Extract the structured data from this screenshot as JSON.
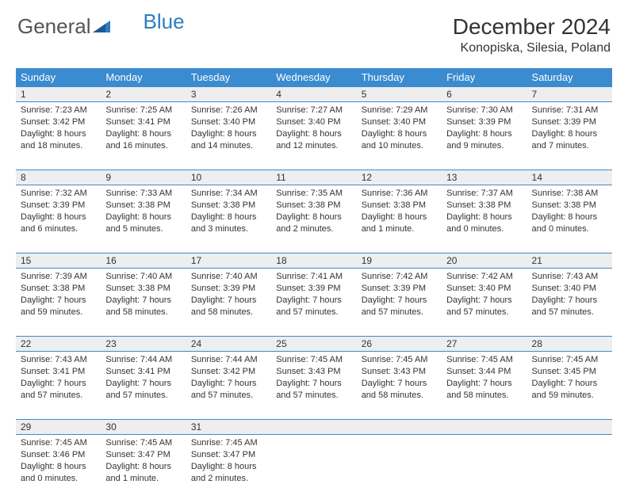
{
  "logo": {
    "text1": "General",
    "text2": "Blue"
  },
  "title": "December 2024",
  "location": "Konopiska, Silesia, Poland",
  "colors": {
    "header_bg": "#3b8bd0",
    "header_text": "#ffffff",
    "daynum_bg": "#eeeeee",
    "border": "#3b8bd0",
    "text": "#333333",
    "logo_gray": "#555555",
    "logo_blue": "#2e7cc2"
  },
  "typography": {
    "title_fontsize": 28,
    "location_fontsize": 16,
    "th_fontsize": 13,
    "daynum_fontsize": 12,
    "cell_fontsize": 11
  },
  "weekdays": [
    "Sunday",
    "Monday",
    "Tuesday",
    "Wednesday",
    "Thursday",
    "Friday",
    "Saturday"
  ],
  "weeks": [
    [
      {
        "n": "1",
        "sunrise": "Sunrise: 7:23 AM",
        "sunset": "Sunset: 3:42 PM",
        "daylight": "Daylight: 8 hours and 18 minutes."
      },
      {
        "n": "2",
        "sunrise": "Sunrise: 7:25 AM",
        "sunset": "Sunset: 3:41 PM",
        "daylight": "Daylight: 8 hours and 16 minutes."
      },
      {
        "n": "3",
        "sunrise": "Sunrise: 7:26 AM",
        "sunset": "Sunset: 3:40 PM",
        "daylight": "Daylight: 8 hours and 14 minutes."
      },
      {
        "n": "4",
        "sunrise": "Sunrise: 7:27 AM",
        "sunset": "Sunset: 3:40 PM",
        "daylight": "Daylight: 8 hours and 12 minutes."
      },
      {
        "n": "5",
        "sunrise": "Sunrise: 7:29 AM",
        "sunset": "Sunset: 3:40 PM",
        "daylight": "Daylight: 8 hours and 10 minutes."
      },
      {
        "n": "6",
        "sunrise": "Sunrise: 7:30 AM",
        "sunset": "Sunset: 3:39 PM",
        "daylight": "Daylight: 8 hours and 9 minutes."
      },
      {
        "n": "7",
        "sunrise": "Sunrise: 7:31 AM",
        "sunset": "Sunset: 3:39 PM",
        "daylight": "Daylight: 8 hours and 7 minutes."
      }
    ],
    [
      {
        "n": "8",
        "sunrise": "Sunrise: 7:32 AM",
        "sunset": "Sunset: 3:39 PM",
        "daylight": "Daylight: 8 hours and 6 minutes."
      },
      {
        "n": "9",
        "sunrise": "Sunrise: 7:33 AM",
        "sunset": "Sunset: 3:38 PM",
        "daylight": "Daylight: 8 hours and 5 minutes."
      },
      {
        "n": "10",
        "sunrise": "Sunrise: 7:34 AM",
        "sunset": "Sunset: 3:38 PM",
        "daylight": "Daylight: 8 hours and 3 minutes."
      },
      {
        "n": "11",
        "sunrise": "Sunrise: 7:35 AM",
        "sunset": "Sunset: 3:38 PM",
        "daylight": "Daylight: 8 hours and 2 minutes."
      },
      {
        "n": "12",
        "sunrise": "Sunrise: 7:36 AM",
        "sunset": "Sunset: 3:38 PM",
        "daylight": "Daylight: 8 hours and 1 minute."
      },
      {
        "n": "13",
        "sunrise": "Sunrise: 7:37 AM",
        "sunset": "Sunset: 3:38 PM",
        "daylight": "Daylight: 8 hours and 0 minutes."
      },
      {
        "n": "14",
        "sunrise": "Sunrise: 7:38 AM",
        "sunset": "Sunset: 3:38 PM",
        "daylight": "Daylight: 8 hours and 0 minutes."
      }
    ],
    [
      {
        "n": "15",
        "sunrise": "Sunrise: 7:39 AM",
        "sunset": "Sunset: 3:38 PM",
        "daylight": "Daylight: 7 hours and 59 minutes."
      },
      {
        "n": "16",
        "sunrise": "Sunrise: 7:40 AM",
        "sunset": "Sunset: 3:38 PM",
        "daylight": "Daylight: 7 hours and 58 minutes."
      },
      {
        "n": "17",
        "sunrise": "Sunrise: 7:40 AM",
        "sunset": "Sunset: 3:39 PM",
        "daylight": "Daylight: 7 hours and 58 minutes."
      },
      {
        "n": "18",
        "sunrise": "Sunrise: 7:41 AM",
        "sunset": "Sunset: 3:39 PM",
        "daylight": "Daylight: 7 hours and 57 minutes."
      },
      {
        "n": "19",
        "sunrise": "Sunrise: 7:42 AM",
        "sunset": "Sunset: 3:39 PM",
        "daylight": "Daylight: 7 hours and 57 minutes."
      },
      {
        "n": "20",
        "sunrise": "Sunrise: 7:42 AM",
        "sunset": "Sunset: 3:40 PM",
        "daylight": "Daylight: 7 hours and 57 minutes."
      },
      {
        "n": "21",
        "sunrise": "Sunrise: 7:43 AM",
        "sunset": "Sunset: 3:40 PM",
        "daylight": "Daylight: 7 hours and 57 minutes."
      }
    ],
    [
      {
        "n": "22",
        "sunrise": "Sunrise: 7:43 AM",
        "sunset": "Sunset: 3:41 PM",
        "daylight": "Daylight: 7 hours and 57 minutes."
      },
      {
        "n": "23",
        "sunrise": "Sunrise: 7:44 AM",
        "sunset": "Sunset: 3:41 PM",
        "daylight": "Daylight: 7 hours and 57 minutes."
      },
      {
        "n": "24",
        "sunrise": "Sunrise: 7:44 AM",
        "sunset": "Sunset: 3:42 PM",
        "daylight": "Daylight: 7 hours and 57 minutes."
      },
      {
        "n": "25",
        "sunrise": "Sunrise: 7:45 AM",
        "sunset": "Sunset: 3:43 PM",
        "daylight": "Daylight: 7 hours and 57 minutes."
      },
      {
        "n": "26",
        "sunrise": "Sunrise: 7:45 AM",
        "sunset": "Sunset: 3:43 PM",
        "daylight": "Daylight: 7 hours and 58 minutes."
      },
      {
        "n": "27",
        "sunrise": "Sunrise: 7:45 AM",
        "sunset": "Sunset: 3:44 PM",
        "daylight": "Daylight: 7 hours and 58 minutes."
      },
      {
        "n": "28",
        "sunrise": "Sunrise: 7:45 AM",
        "sunset": "Sunset: 3:45 PM",
        "daylight": "Daylight: 7 hours and 59 minutes."
      }
    ],
    [
      {
        "n": "29",
        "sunrise": "Sunrise: 7:45 AM",
        "sunset": "Sunset: 3:46 PM",
        "daylight": "Daylight: 8 hours and 0 minutes."
      },
      {
        "n": "30",
        "sunrise": "Sunrise: 7:45 AM",
        "sunset": "Sunset: 3:47 PM",
        "daylight": "Daylight: 8 hours and 1 minute."
      },
      {
        "n": "31",
        "sunrise": "Sunrise: 7:45 AM",
        "sunset": "Sunset: 3:47 PM",
        "daylight": "Daylight: 8 hours and 2 minutes."
      },
      null,
      null,
      null,
      null
    ]
  ]
}
